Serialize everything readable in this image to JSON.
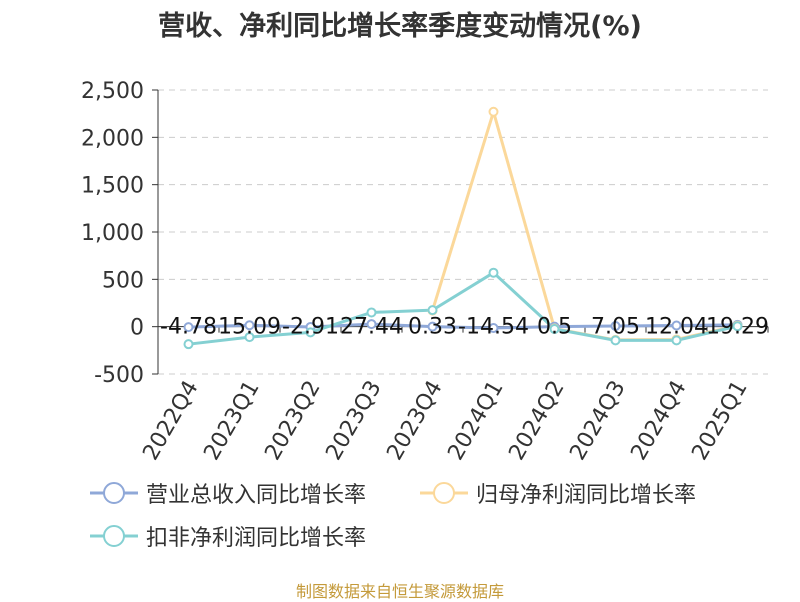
{
  "title": "营收、净利同比增长率季度变动情况(%)",
  "source": "制图数据来自恒生聚源数据库",
  "chart_data": {
    "type": "line",
    "title": "营收、净利同比增长率季度变动情况(%)",
    "categories": [
      "2022Q4",
      "2023Q1",
      "2023Q2",
      "2023Q3",
      "2023Q4",
      "2024Q1",
      "2024Q2",
      "2024Q3",
      "2024Q4",
      "2025Q1"
    ],
    "ylim": [
      -500,
      2500
    ],
    "yticks": [
      -500,
      0,
      500,
      1000,
      1500,
      2000,
      2500
    ],
    "ytick_labels": [
      "-500",
      "0",
      "500",
      "1,000",
      "1,500",
      "2,000",
      "2,500"
    ],
    "grid": true,
    "legend_position": "bottom",
    "series": [
      {
        "name": "营业总收入同比增长率",
        "color": "#8fa8d8",
        "values": [
          -4.78,
          15.09,
          -2.91,
          27.44,
          0.33,
          -14.54,
          0.5,
          7.05,
          12.04,
          19.29
        ],
        "data_labels": [
          "-4.78",
          "15.09",
          "-2.91",
          "27.44",
          "0.33",
          "-14.54",
          "0.5",
          "7.05",
          "12.04",
          "19.29"
        ]
      },
      {
        "name": "归母净利润同比增长率",
        "color": "#fbd89a",
        "values": [
          null,
          null,
          null,
          null,
          170,
          2270,
          -20,
          -140,
          -135,
          10
        ]
      },
      {
        "name": "扣非净利润同比增长率",
        "color": "#84d0d2",
        "values": [
          -185,
          -110,
          -60,
          150,
          175,
          570,
          -25,
          -145,
          -145,
          5
        ]
      }
    ]
  }
}
